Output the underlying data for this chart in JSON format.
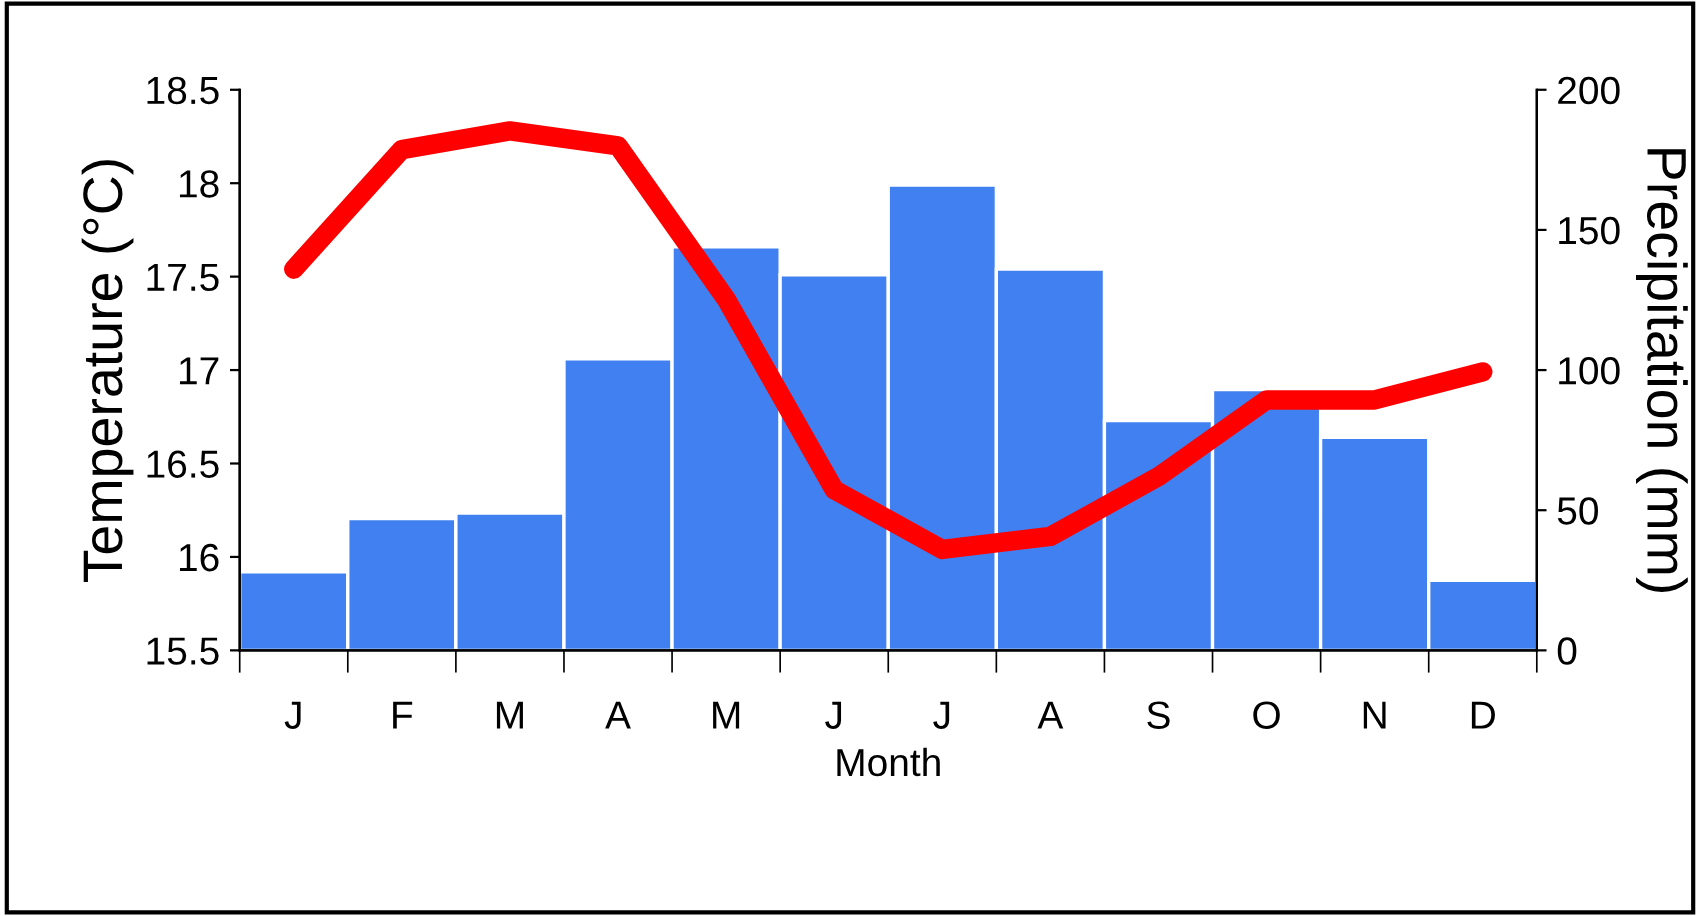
{
  "chart_data": {
    "type": "bar",
    "xlabel": "Month",
    "ylabel": "Temperature (°C)",
    "y2label": "Precipitation (mm)",
    "categories": [
      "J",
      "F",
      "M",
      "A",
      "M",
      "J",
      "J",
      "A",
      "S",
      "O",
      "N",
      "D"
    ],
    "series": [
      {
        "axis": "y2",
        "color": "#4080f0",
        "values": [
          28,
          47,
          49,
          104,
          144,
          134,
          166,
          136,
          82,
          93,
          76,
          25
        ]
      },
      {
        "type": "line",
        "axis": "y",
        "color": "#ff0000",
        "values": [
          17.54,
          18.18,
          18.28,
          18.2,
          17.38,
          16.36,
          16.04,
          16.11,
          16.43,
          16.84,
          16.84,
          16.99
        ]
      }
    ],
    "ylim": [
      15.5,
      18.5
    ],
    "yticks": [
      15.5,
      16,
      16.5,
      17,
      17.5,
      18,
      18.5
    ],
    "y2lim": [
      0,
      200
    ],
    "y2ticks": [
      0,
      50,
      100,
      150,
      200
    ],
    "grid": false,
    "marker": "none",
    "line_style": "solid"
  }
}
